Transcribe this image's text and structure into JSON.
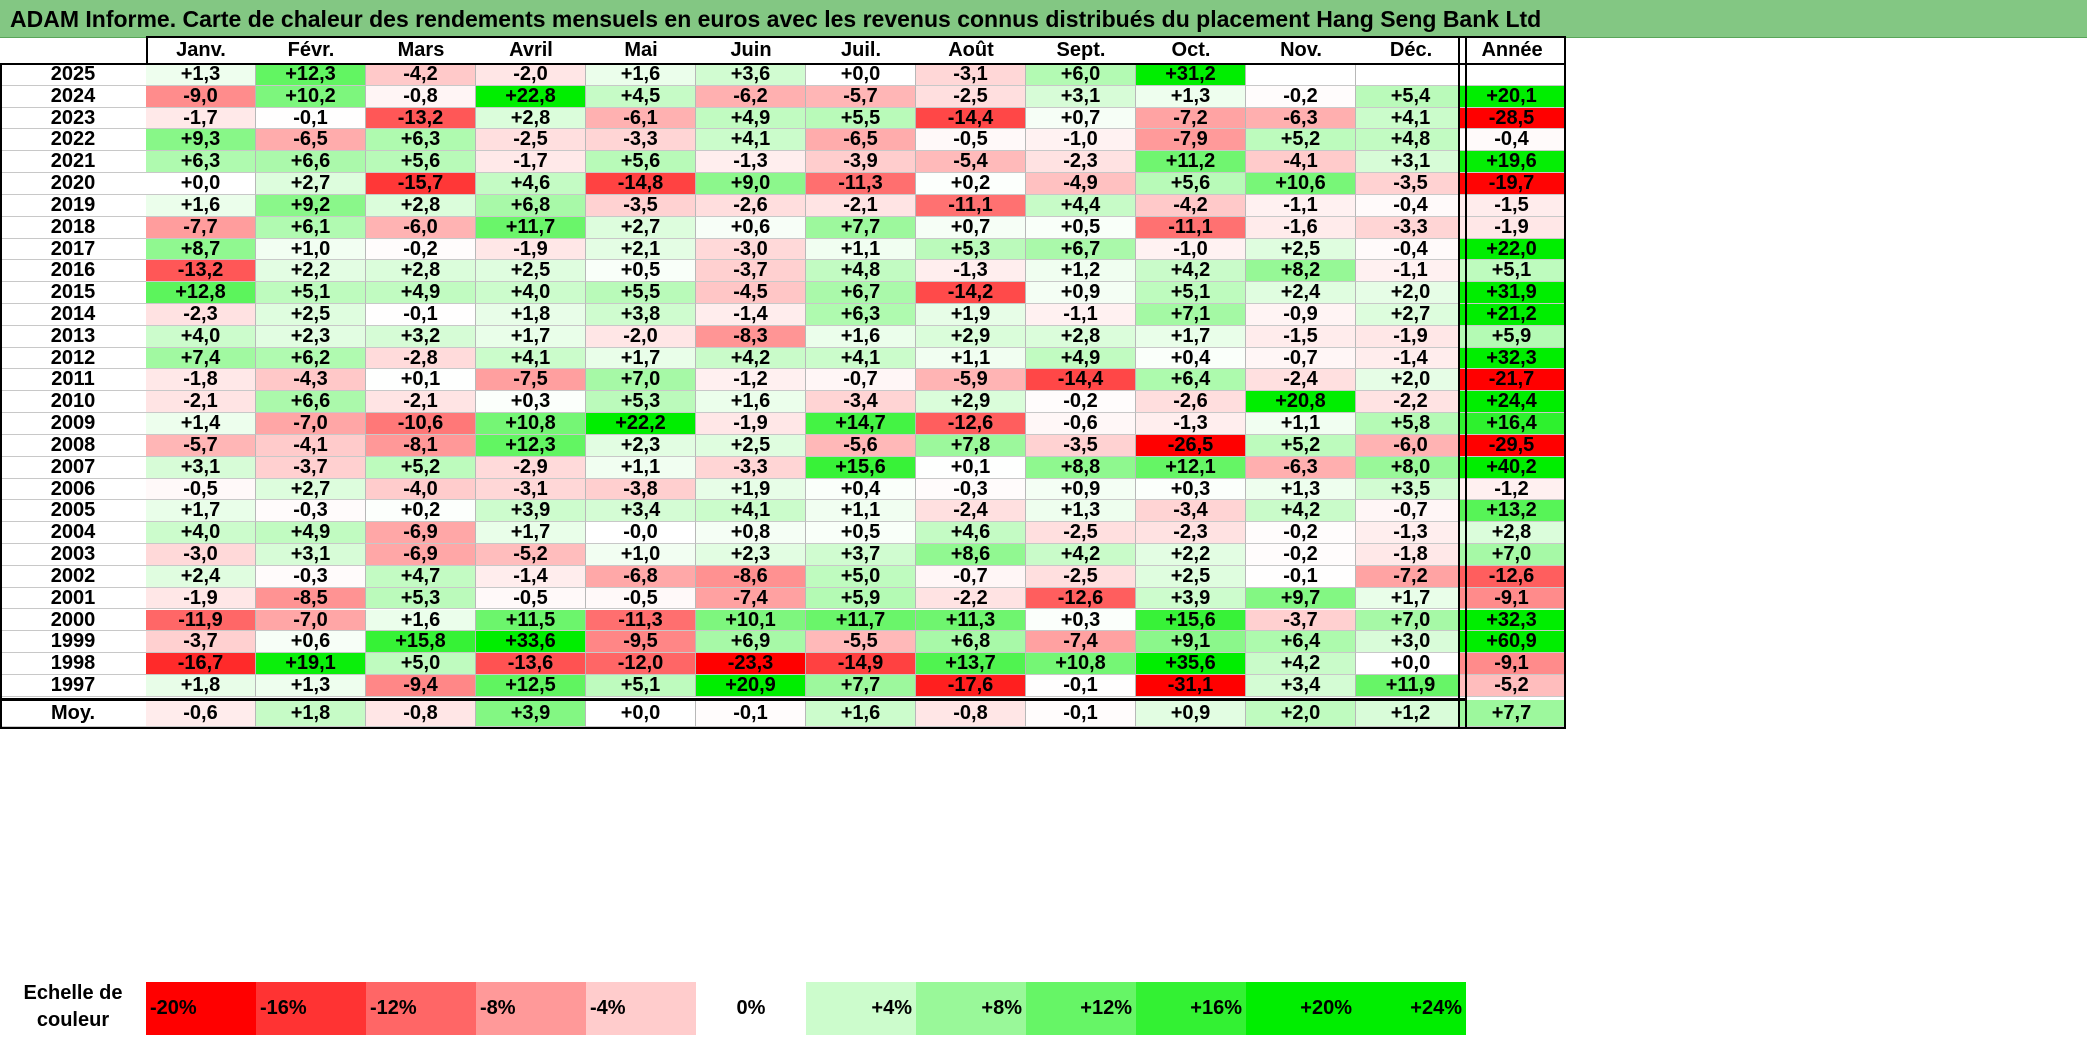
{
  "title": "ADAM Informe. Carte de chaleur des rendements mensuels en euros avec les revenus connus distribués du placement Hang Seng Bank Ltd",
  "chart_data": {
    "type": "heatmap",
    "title": "ADAM Informe. Carte de chaleur des rendements mensuels en euros avec les revenus connus distribués du placement Hang Seng Bank Ltd",
    "columns": [
      "Janv.",
      "Févr.",
      "Mars",
      "Avril",
      "Mai",
      "Juin",
      "Juil.",
      "Août",
      "Sept.",
      "Oct.",
      "Nov.",
      "Déc."
    ],
    "year_column_label": "Année",
    "rows": [
      {
        "year": "2025",
        "values": [
          "+1,3",
          "+12,3",
          "-4,2",
          "-2,0",
          "+1,6",
          "+3,6",
          "+0,0",
          "-3,1",
          "+6,0",
          "+31,2",
          "",
          ""
        ],
        "annual": ""
      },
      {
        "year": "2024",
        "values": [
          "-9,0",
          "+10,2",
          "-0,8",
          "+22,8",
          "+4,5",
          "-6,2",
          "-5,7",
          "-2,5",
          "+3,1",
          "+1,3",
          "-0,2",
          "+5,4"
        ],
        "annual": "+20,1"
      },
      {
        "year": "2023",
        "values": [
          "-1,7",
          "-0,1",
          "-13,2",
          "+2,8",
          "-6,1",
          "+4,9",
          "+5,5",
          "-14,4",
          "+0,7",
          "-7,2",
          "-6,3",
          "+4,1"
        ],
        "annual": "-28,5"
      },
      {
        "year": "2022",
        "values": [
          "+9,3",
          "-6,5",
          "+6,3",
          "-2,5",
          "-3,3",
          "+4,1",
          "-6,5",
          "-0,5",
          "-1,0",
          "-7,9",
          "+5,2",
          "+4,8"
        ],
        "annual": "-0,4"
      },
      {
        "year": "2021",
        "values": [
          "+6,3",
          "+6,6",
          "+5,6",
          "-1,7",
          "+5,6",
          "-1,3",
          "-3,9",
          "-5,4",
          "-2,3",
          "+11,2",
          "-4,1",
          "+3,1"
        ],
        "annual": "+19,6"
      },
      {
        "year": "2020",
        "values": [
          "+0,0",
          "+2,7",
          "-15,7",
          "+4,6",
          "-14,8",
          "+9,0",
          "-11,3",
          "+0,2",
          "-4,9",
          "+5,6",
          "+10,6",
          "-3,5"
        ],
        "annual": "-19,7"
      },
      {
        "year": "2019",
        "values": [
          "+1,6",
          "+9,2",
          "+2,8",
          "+6,8",
          "-3,5",
          "-2,6",
          "-2,1",
          "-11,1",
          "+4,4",
          "-4,2",
          "-1,1",
          "-0,4"
        ],
        "annual": "-1,5"
      },
      {
        "year": "2018",
        "values": [
          "-7,7",
          "+6,1",
          "-6,0",
          "+11,7",
          "+2,7",
          "+0,6",
          "+7,7",
          "+0,7",
          "+0,5",
          "-11,1",
          "-1,6",
          "-3,3"
        ],
        "annual": "-1,9"
      },
      {
        "year": "2017",
        "values": [
          "+8,7",
          "+1,0",
          "-0,2",
          "-1,9",
          "+2,1",
          "-3,0",
          "+1,1",
          "+5,3",
          "+6,7",
          "-1,0",
          "+2,5",
          "-0,4"
        ],
        "annual": "+22,0"
      },
      {
        "year": "2016",
        "values": [
          "-13,2",
          "+2,2",
          "+2,8",
          "+2,5",
          "+0,5",
          "-3,7",
          "+4,8",
          "-1,3",
          "+1,2",
          "+4,2",
          "+8,2",
          "-1,1"
        ],
        "annual": "+5,1"
      },
      {
        "year": "2015",
        "values": [
          "+12,8",
          "+5,1",
          "+4,9",
          "+4,0",
          "+5,5",
          "-4,5",
          "+6,7",
          "-14,2",
          "+0,9",
          "+5,1",
          "+2,4",
          "+2,0"
        ],
        "annual": "+31,9"
      },
      {
        "year": "2014",
        "values": [
          "-2,3",
          "+2,5",
          "-0,1",
          "+1,8",
          "+3,8",
          "-1,4",
          "+6,3",
          "+1,9",
          "-1,1",
          "+7,1",
          "-0,9",
          "+2,7"
        ],
        "annual": "+21,2"
      },
      {
        "year": "2013",
        "values": [
          "+4,0",
          "+2,3",
          "+3,2",
          "+1,7",
          "-2,0",
          "-8,3",
          "+1,6",
          "+2,9",
          "+2,8",
          "+1,7",
          "-1,5",
          "-1,9"
        ],
        "annual": "+5,9"
      },
      {
        "year": "2012",
        "values": [
          "+7,4",
          "+6,2",
          "-2,8",
          "+4,1",
          "+1,7",
          "+4,2",
          "+4,1",
          "+1,1",
          "+4,9",
          "+0,4",
          "-0,7",
          "-1,4"
        ],
        "annual": "+32,3"
      },
      {
        "year": "2011",
        "values": [
          "-1,8",
          "-4,3",
          "+0,1",
          "-7,5",
          "+7,0",
          "-1,2",
          "-0,7",
          "-5,9",
          "-14,4",
          "+6,4",
          "-2,4",
          "+2,0"
        ],
        "annual": "-21,7"
      },
      {
        "year": "2010",
        "values": [
          "-2,1",
          "+6,6",
          "-2,1",
          "+0,3",
          "+5,3",
          "+1,6",
          "-3,4",
          "+2,9",
          "-0,2",
          "-2,6",
          "+20,8",
          "-2,2"
        ],
        "annual": "+24,4"
      },
      {
        "year": "2009",
        "values": [
          "+1,4",
          "-7,0",
          "-10,6",
          "+10,8",
          "+22,2",
          "-1,9",
          "+14,7",
          "-12,6",
          "-0,6",
          "-1,3",
          "+1,1",
          "+5,8"
        ],
        "annual": "+16,4"
      },
      {
        "year": "2008",
        "values": [
          "-5,7",
          "-4,1",
          "-8,1",
          "+12,3",
          "+2,3",
          "+2,5",
          "-5,6",
          "+7,8",
          "-3,5",
          "-26,5",
          "+5,2",
          "-6,0"
        ],
        "annual": "-29,5"
      },
      {
        "year": "2007",
        "values": [
          "+3,1",
          "-3,7",
          "+5,2",
          "-2,9",
          "+1,1",
          "-3,3",
          "+15,6",
          "+0,1",
          "+8,8",
          "+12,1",
          "-6,3",
          "+8,0"
        ],
        "annual": "+40,2"
      },
      {
        "year": "2006",
        "values": [
          "-0,5",
          "+2,7",
          "-4,0",
          "-3,1",
          "-3,8",
          "+1,9",
          "+0,4",
          "-0,3",
          "+0,9",
          "+0,3",
          "+1,3",
          "+3,5"
        ],
        "annual": "-1,2"
      },
      {
        "year": "2005",
        "values": [
          "+1,7",
          "-0,3",
          "+0,2",
          "+3,9",
          "+3,4",
          "+4,1",
          "+1,1",
          "-2,4",
          "+1,3",
          "-3,4",
          "+4,2",
          "-0,7"
        ],
        "annual": "+13,2"
      },
      {
        "year": "2004",
        "values": [
          "+4,0",
          "+4,9",
          "-6,9",
          "+1,7",
          "-0,0",
          "+0,8",
          "+0,5",
          "+4,6",
          "-2,5",
          "-2,3",
          "-0,2",
          "-1,3"
        ],
        "annual": "+2,8"
      },
      {
        "year": "2003",
        "values": [
          "-3,0",
          "+3,1",
          "-6,9",
          "-5,2",
          "+1,0",
          "+2,3",
          "+3,7",
          "+8,6",
          "+4,2",
          "+2,2",
          "-0,2",
          "-1,8"
        ],
        "annual": "+7,0"
      },
      {
        "year": "2002",
        "values": [
          "+2,4",
          "-0,3",
          "+4,7",
          "-1,4",
          "-6,8",
          "-8,6",
          "+5,0",
          "-0,7",
          "-2,5",
          "+2,5",
          "-0,1",
          "-7,2"
        ],
        "annual": "-12,6"
      },
      {
        "year": "2001",
        "values": [
          "-1,9",
          "-8,5",
          "+5,3",
          "-0,5",
          "-0,5",
          "-7,4",
          "+5,9",
          "-2,2",
          "-12,6",
          "+3,9",
          "+9,7",
          "+1,7"
        ],
        "annual": "-9,1"
      },
      {
        "year": "2000",
        "values": [
          "-11,9",
          "-7,0",
          "+1,6",
          "+11,5",
          "-11,3",
          "+10,1",
          "+11,7",
          "+11,3",
          "+0,3",
          "+15,6",
          "-3,7",
          "+7,0"
        ],
        "annual": "+32,3"
      },
      {
        "year": "1999",
        "values": [
          "-3,7",
          "+0,6",
          "+15,8",
          "+33,6",
          "-9,5",
          "+6,9",
          "-5,5",
          "+6,8",
          "-7,4",
          "+9,1",
          "+6,4",
          "+3,0"
        ],
        "annual": "+60,9"
      },
      {
        "year": "1998",
        "values": [
          "-16,7",
          "+19,1",
          "+5,0",
          "-13,6",
          "-12,0",
          "-23,3",
          "-14,9",
          "+13,7",
          "+10,8",
          "+35,6",
          "+4,2",
          "+0,0"
        ],
        "annual": "-9,1"
      },
      {
        "year": "1997",
        "values": [
          "+1,8",
          "+1,3",
          "-9,4",
          "+12,5",
          "+5,1",
          "+20,9",
          "+7,7",
          "-17,6",
          "-0,1",
          "-31,1",
          "+3,4",
          "+11,9"
        ],
        "annual": "-5,2"
      }
    ],
    "average": {
      "label": "Moy.",
      "values": [
        "-0,6",
        "+1,8",
        "-0,8",
        "+3,9",
        "+0,0",
        "-0,1",
        "+1,6",
        "-0,8",
        "-0,1",
        "+0,9",
        "+2,0",
        "+1,2"
      ],
      "annual": "+7,7"
    },
    "color_scale": {
      "label": "Echelle de couleur",
      "stops": [
        "-20%",
        "-16%",
        "-12%",
        "-8%",
        "-4%",
        "0%",
        "+4%",
        "+8%",
        "+12%",
        "+16%",
        "+20%",
        "+24%"
      ],
      "negative_color": "#ff0000",
      "neutral_color": "#ffffff",
      "positive_color": "#00ee00",
      "title_bar_color": "#83c783"
    }
  }
}
